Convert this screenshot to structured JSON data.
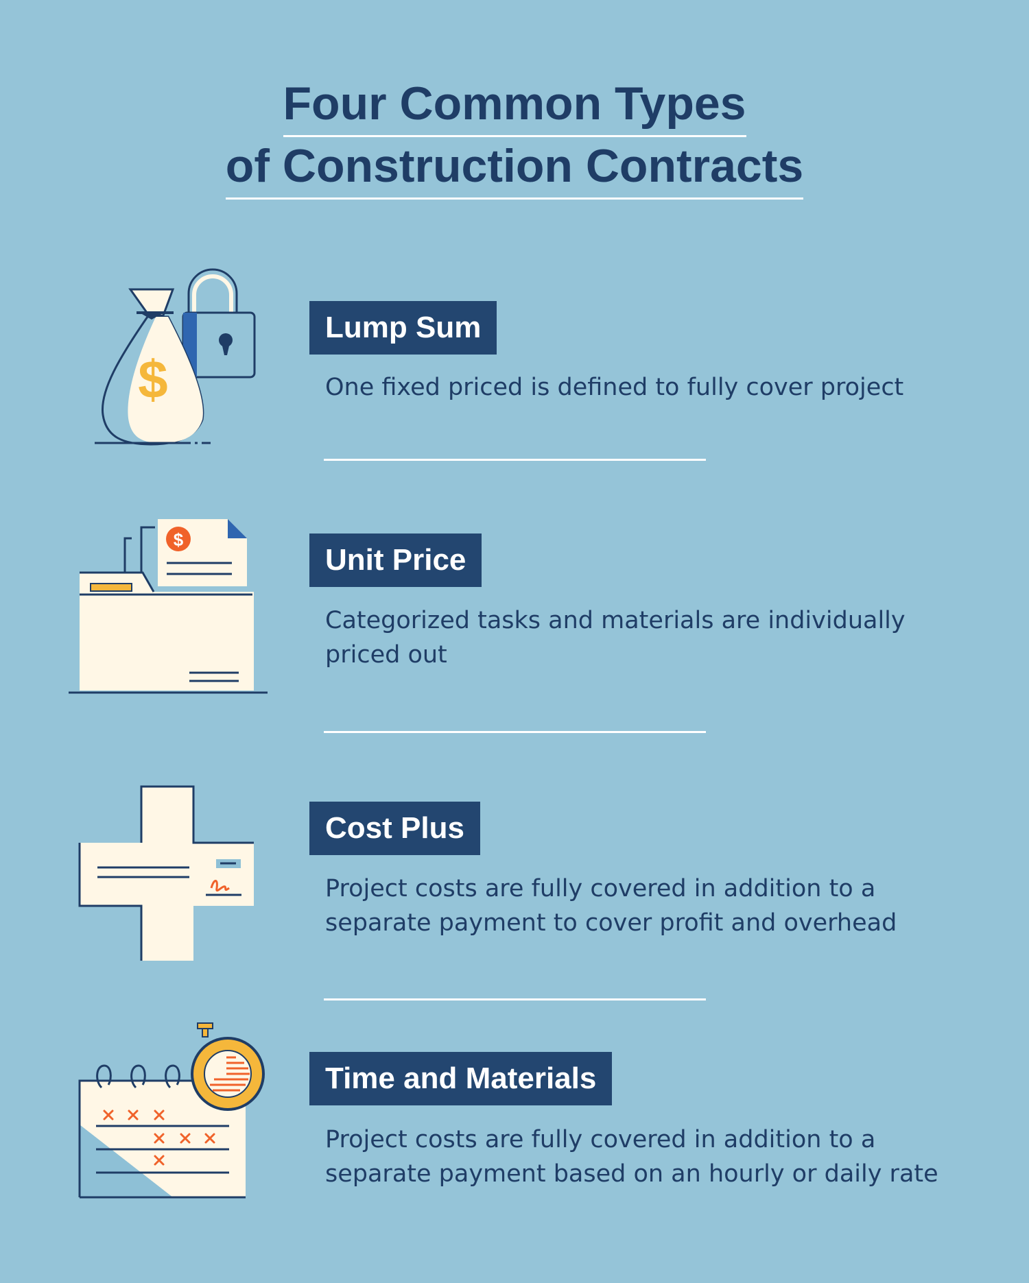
{
  "title": {
    "line1": "Four Common Types",
    "line2": "of Construction Contracts"
  },
  "contracts": [
    {
      "label": "Lump Sum",
      "description": "One fixed priced is defined to fully cover project",
      "icon": "money-bag-lock-icon"
    },
    {
      "label": "Unit Price",
      "description": "Categorized tasks and materials are individually priced out",
      "icon": "folder-invoice-icon"
    },
    {
      "label": "Cost Plus",
      "description": "Project costs are fully covered in addition to a separate payment to cover profit and overhead",
      "icon": "signed-check-plus-icon"
    },
    {
      "label": "Time and Materials",
      "description": "Project costs are fully covered in addition to a separate payment based on an hourly or daily rate",
      "icon": "calendar-stopwatch-icon"
    }
  ],
  "colors": {
    "background": "#95c4d8",
    "navy": "#1f3d66",
    "label_bg": "#234670",
    "cream": "#fff7e6",
    "gold": "#f5b73b",
    "orange": "#f0622a"
  }
}
